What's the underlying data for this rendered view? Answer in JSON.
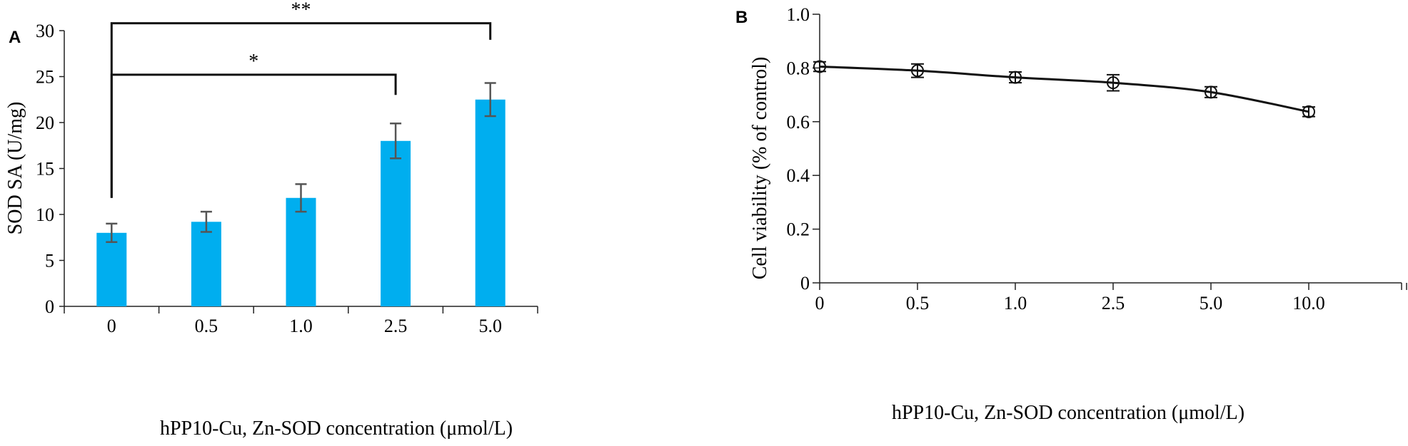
{
  "chart_data": [
    {
      "type": "bar",
      "panel_label": "A",
      "categories": [
        "0",
        "0.5",
        "1.0",
        "2.5",
        "5.0"
      ],
      "values": [
        8.0,
        9.2,
        11.8,
        18.0,
        22.5
      ],
      "errors": [
        1.0,
        1.1,
        1.5,
        1.9,
        1.8
      ],
      "xlabel": "hPP10-Cu, Zn-SOD concentration (μmol/L)",
      "ylabel": "SOD SA (U/mg)",
      "ylim": [
        0,
        30
      ],
      "yticks": [
        0,
        5,
        10,
        15,
        20,
        25,
        30
      ],
      "bar_color": "#00aeef",
      "error_color": "#555555",
      "significance": [
        {
          "from": "0",
          "to": "2.5",
          "label": "*"
        },
        {
          "from": "0",
          "to": "5.0",
          "label": "**"
        }
      ],
      "grid": false
    },
    {
      "type": "line",
      "panel_label": "B",
      "categories": [
        "0",
        "0.5",
        "1.0",
        "2.5",
        "5.0",
        "10.0"
      ],
      "values": [
        0.805,
        0.79,
        0.765,
        0.745,
        0.71,
        0.637
      ],
      "errors": [
        0.018,
        0.025,
        0.02,
        0.03,
        0.02,
        0.018
      ],
      "xlabel": "hPP10-Cu, Zn-SOD concentration (μmol/L)",
      "ylabel": "Cell viability (% of control)",
      "ylim": [
        0,
        1.0
      ],
      "yticks": [
        "0",
        "0.2",
        "0.4",
        "0.6",
        "0.8",
        "1.0"
      ],
      "line_color": "#111111",
      "marker": "open-circle",
      "grid": false
    }
  ]
}
